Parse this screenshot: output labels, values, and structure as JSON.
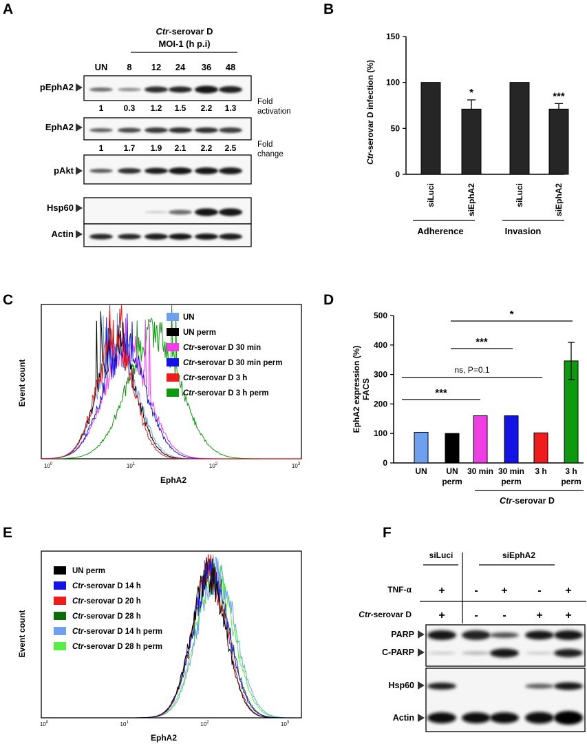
{
  "panels": {
    "A": {
      "letter": "A",
      "header_italic": "Ctr",
      "header_rest": "-serovar D",
      "header_line2": "MOI-1 (h p.i)",
      "lanes": [
        "UN",
        "8",
        "12",
        "24",
        "36",
        "48"
      ],
      "blots": [
        "pEphA2",
        "EphA2",
        "pAkt",
        "Hsp60",
        "Actin"
      ],
      "fold_activation": [
        "1",
        "0.3",
        "1.2",
        "1.5",
        "2.2",
        "1.3"
      ],
      "fold_activation_label": [
        "Fold",
        "activation"
      ],
      "fold_change": [
        "1",
        "1.7",
        "1.9",
        "2.1",
        "2.2",
        "2.5"
      ],
      "fold_change_label": [
        "Fold",
        "change"
      ]
    },
    "B": {
      "letter": "B",
      "chart_data": {
        "type": "bar",
        "ylabel_italic": "Ctr",
        "ylabel_rest": "-serovar D infection (%)",
        "yticks": [
          "0",
          "50",
          "100",
          "150"
        ],
        "ylim": [
          0,
          150
        ],
        "categories": [
          "siLuci",
          "siEphA2",
          "siLuci",
          "siEphA2"
        ],
        "values": [
          100,
          71,
          100,
          71
        ],
        "errors": [
          0,
          10,
          0,
          6
        ],
        "significance": [
          "",
          "*",
          "",
          "***"
        ],
        "groups": [
          "Adherence",
          "Invasion"
        ],
        "bar_color": "#262626"
      }
    },
    "C": {
      "letter": "C",
      "ylabel": "Event count",
      "xlabel": "EphA2",
      "xticks": [
        "10",
        "10",
        "10",
        "10"
      ],
      "xtick_exps": [
        "0",
        "1",
        "2",
        "3"
      ],
      "legend": [
        {
          "pre": "",
          "text": "UN",
          "color": "#6fa0ee"
        },
        {
          "pre": "",
          "text": "UN perm",
          "color": "#000000"
        },
        {
          "pre": "Ctr",
          "text": "-serovar D 30 min",
          "color": "#ee3ee4"
        },
        {
          "pre": "Ctr",
          "text": "-serovar D  30 min perm",
          "color": "#1313e6"
        },
        {
          "pre": "Ctr",
          "text": "-serovar D  3 h",
          "color": "#f01b1b"
        },
        {
          "pre": "Ctr",
          "text": "-serovar D  3 h perm",
          "color": "#0e9a0e"
        }
      ]
    },
    "D": {
      "letter": "D",
      "chart_data": {
        "type": "bar",
        "ylabel_line1": "EphA2 expression (%)",
        "ylabel_line2": "FACS",
        "yticks": [
          "0",
          "100",
          "200",
          "300",
          "400",
          "500"
        ],
        "ylim": [
          0,
          500
        ],
        "categories": [
          [
            "UN"
          ],
          [
            "UN",
            "perm"
          ],
          [
            "30 min"
          ],
          [
            "30 min",
            "perm"
          ],
          [
            "3 h"
          ],
          [
            "3 h",
            "perm"
          ]
        ],
        "values": [
          104,
          100,
          160,
          160,
          102,
          346
        ],
        "errors": [
          0,
          0,
          0,
          0,
          0,
          63
        ],
        "colors": [
          "#6fa0ee",
          "#000000",
          "#ee3ee4",
          "#1313e6",
          "#f01b1b",
          "#0e9a0e"
        ],
        "brackets": [
          "*",
          "***",
          "ns, P=0.1",
          "***"
        ],
        "group_italic": "Ctr",
        "group_rest": "-serovar D"
      }
    },
    "E": {
      "letter": "E",
      "ylabel": "Event count",
      "xlabel": "EphA2",
      "xticks": [
        "10",
        "10",
        "10",
        "10"
      ],
      "xtick_exps": [
        "0",
        "1",
        "2",
        "3"
      ],
      "legend": [
        {
          "pre": "",
          "text": "UN perm",
          "color": "#000000"
        },
        {
          "pre": "Ctr",
          "text": "-serovar D 14 h",
          "color": "#1313e6"
        },
        {
          "pre": "Ctr",
          "text": "-serovar D 20 h",
          "color": "#f01b1b"
        },
        {
          "pre": "Ctr",
          "text": "-serovar D 28 h",
          "color": "#0b6e0b"
        },
        {
          "pre": "Ctr",
          "text": "-serovar D 14 h perm",
          "color": "#6fa0ee"
        },
        {
          "pre": "Ctr",
          "text": "-serovar D 28 h perm",
          "color": "#55ee44"
        }
      ]
    },
    "F": {
      "letter": "F",
      "group1": "siLuci",
      "group2": "siEphA2",
      "row1_label": "TNF-α",
      "row2_italic": "Ctr",
      "row2_rest": "-serovar D",
      "tnf": [
        "+",
        "-",
        "+",
        "-",
        "+"
      ],
      "ctr": [
        "+",
        "-",
        "-",
        "+",
        "+"
      ],
      "blots": [
        "PARP",
        "C-PARP",
        "Hsp60",
        "Actin"
      ]
    }
  }
}
